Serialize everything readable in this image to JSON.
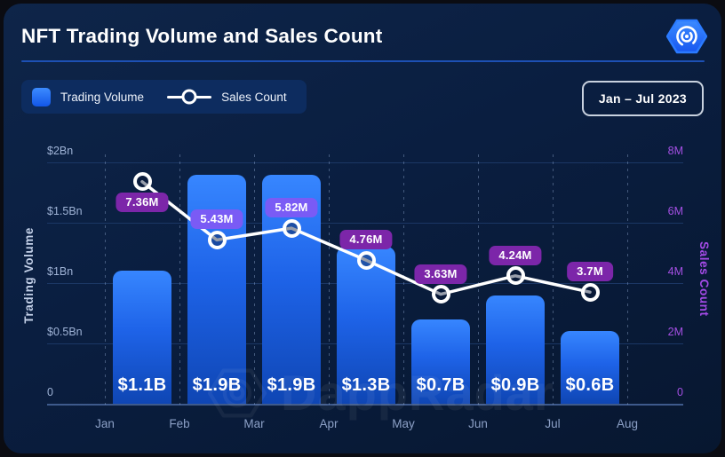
{
  "header": {
    "title": "NFT Trading Volume and Sales Count",
    "logo": "dappradar-hexagon-fingerprint"
  },
  "legend": {
    "items": [
      {
        "label": "Trading Volume",
        "swatch": "blue-square"
      },
      {
        "label": "Sales Count",
        "swatch": "white-line-with-circle"
      }
    ]
  },
  "period_badge": {
    "label": "Jan – Jul 2023"
  },
  "watermark": {
    "text": "DappRadar"
  },
  "colors": {
    "card_background_top": "#0E2549",
    "card_background_bottom": "#071730",
    "bar_gradient_top": "#3786FF",
    "bar_gradient_bottom": "#0F46B4",
    "line": "#FFFFFF",
    "badge_purple": "#7C26A9",
    "badge_violet": "#7A5BF5",
    "left_axis_text": "#9FB3D6",
    "right_axis_text": "#A44FE3",
    "divider_blue": "#1D50B4",
    "legend_background": "#0D2C5F"
  },
  "chart_data": {
    "type": "combo",
    "title": "NFT Trading Volume and Sales Count",
    "categories": [
      "Jan",
      "Feb",
      "Mar",
      "Apr",
      "May",
      "Jun",
      "Jul"
    ],
    "x_axis_ticks": [
      "Jan",
      "Feb",
      "Mar",
      "Apr",
      "May",
      "Jun",
      "Jul",
      "Aug"
    ],
    "series": [
      {
        "name": "Trading Volume",
        "type": "bar",
        "axis": "left",
        "unit": "billion USD",
        "values": [
          1.1,
          1.9,
          1.9,
          1.3,
          0.7,
          0.9,
          0.6
        ],
        "labels": [
          "$1.1B",
          "$1.9B",
          "$1.9B",
          "$1.3B",
          "$0.7B",
          "$0.9B",
          "$0.6B"
        ]
      },
      {
        "name": "Sales Count",
        "type": "line",
        "axis": "right",
        "unit": "million sales",
        "values": [
          7.36,
          5.43,
          5.82,
          4.76,
          3.63,
          4.24,
          3.7
        ],
        "labels": [
          "7.36M",
          "5.43M",
          "5.82M",
          "4.76M",
          "3.63M",
          "4.24M",
          "3.7M"
        ],
        "label_position": [
          "below",
          "above",
          "above",
          "above",
          "above",
          "above",
          "above"
        ],
        "badge_variant": [
          "purple",
          "violet",
          "violet",
          "purple",
          "purple",
          "purple",
          "purple"
        ]
      }
    ],
    "left_axis": {
      "title": "Trading Volume",
      "range": [
        0,
        2
      ],
      "unit": "billion USD",
      "ticks": [
        "$2Bn",
        "$1.5Bn",
        "$1Bn",
        "$0.5Bn",
        "0"
      ]
    },
    "right_axis": {
      "title": "Sales Count",
      "range": [
        0,
        8
      ],
      "unit": "million",
      "ticks": [
        "8M",
        "6M",
        "4M",
        "2M",
        "0"
      ]
    },
    "grid": {
      "horizontal": true,
      "vertical": "dashed"
    },
    "legend_position": "top-left"
  }
}
